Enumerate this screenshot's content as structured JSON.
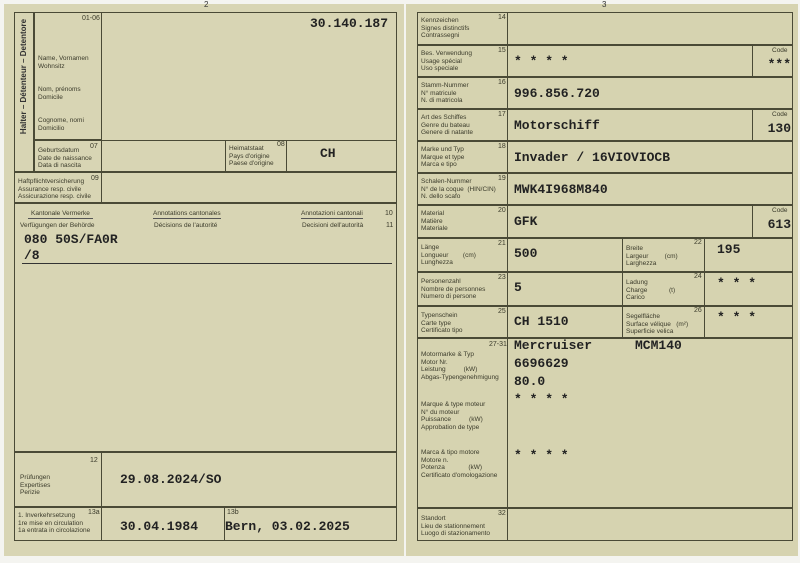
{
  "left": {
    "page_number": "2",
    "holder_vertical": "Halter – Détenteur – Detentore",
    "f0106": {
      "num": "01-06",
      "labels": [
        "Name, Vornamen",
        "Wohnsitz",
        "Nom, prénoms",
        "Domicile",
        "Cognome, nomi",
        "Domicilio"
      ],
      "value": "30.140.187"
    },
    "f07": {
      "num": "07",
      "labels": [
        "Geburtsdatum",
        "Date de naissance",
        "Data di nascita"
      ],
      "value": ""
    },
    "f08": {
      "num": "08",
      "labels": [
        "Heimatstaat",
        "Pays d'origine",
        "Paese d'origine"
      ],
      "value": "CH"
    },
    "f09": {
      "num": "09",
      "labels": [
        "Haftpflichtversicherung",
        "Assurance resp. civile",
        "Assicurazione resp. civile"
      ]
    },
    "f10": {
      "num": "10",
      "labels": [
        "Kantonale Vermerke",
        "Annotations cantonales",
        "Annotazioni cantonali"
      ]
    },
    "f11": {
      "num": "11",
      "labels": [
        "Verfügungen der Behörde",
        "Décisions de l'autorité",
        "Decisioni dell'autorità"
      ],
      "value_lines": [
        "080 50S/FA0R",
        "/8"
      ]
    },
    "f12": {
      "num": "12",
      "labels": [
        "Prüfungen",
        "Expertises",
        "Perizie"
      ],
      "value": "29.08.2024/SO"
    },
    "f13a": {
      "num": "13a",
      "labels": [
        "1. Inverkehrsetzung",
        "1re mise en circulation",
        "1a entrata in circolazione"
      ],
      "value": "30.04.1984"
    },
    "f13b": {
      "num": "13b",
      "value": "Bern, 03.02.2025"
    }
  },
  "right": {
    "page_number": "3",
    "code_label": "Code",
    "rows": [
      {
        "num": "14",
        "labels": [
          "Kennzeichen",
          "Signes distinctifs",
          "Contrassegni"
        ],
        "value": ""
      },
      {
        "num": "15",
        "labels": [
          "Bes. Verwendung",
          "Usage spécial",
          "Uso speciale"
        ],
        "value": "* * * *",
        "code": "***"
      },
      {
        "num": "16",
        "labels": [
          "Stamm-Nummer",
          "N° matricule",
          "N. di matricola"
        ],
        "value": "996.856.720"
      },
      {
        "num": "17",
        "labels": [
          "Art des Schiffes",
          "Genre du bateau",
          "Genere di natante"
        ],
        "value": "Motorschiff",
        "code": "130"
      },
      {
        "num": "18",
        "labels": [
          "Marke und Typ",
          "Marque et type",
          "Marca e tipo"
        ],
        "value": "Invader / 16VIOVIOCB"
      },
      {
        "num": "19",
        "labels": [
          "Schalen-Nummer",
          "N° de la coque  (HIN/CIN)",
          "N. dello scafo"
        ],
        "value": "MWK4I968M840"
      },
      {
        "num": "20",
        "labels": [
          "Material",
          "Matière",
          "Materiale"
        ],
        "value": "GFK",
        "code": "613"
      }
    ],
    "f21": {
      "num": "21",
      "labels": [
        "Länge",
        "Longueur        (cm)",
        "Lunghezza"
      ],
      "value": "500"
    },
    "f22": {
      "num": "22",
      "labels": [
        "Breite",
        "Largeur         (cm)",
        "Larghezza"
      ],
      "value": "195"
    },
    "f23": {
      "num": "23",
      "labels": [
        "Personenzahl",
        "Nombre de personnes",
        "Numero di persone"
      ],
      "value": "5"
    },
    "f24": {
      "num": "24",
      "labels": [
        "Ladung",
        "Charge            (t)",
        "Carico"
      ],
      "value": "* * *"
    },
    "f25": {
      "num": "25",
      "labels": [
        "Typenschein",
        "Carte type",
        "Certificato tipo"
      ],
      "value": "CH 1510"
    },
    "f26": {
      "num": "26",
      "labels": [
        "Segelfläche",
        "Surface vélique   (m²)",
        "Superficie velica"
      ],
      "value": "* * *"
    },
    "f2731": {
      "num": "27-31",
      "labels_de": [
        "Motormarke & Typ",
        "Motor Nr.",
        "Leistung          (kW)",
        "Abgas-Typengenehmigung"
      ],
      "labels_fr": [
        "Marque & type moteur",
        "N° du moteur",
        "Puissance          (kW)",
        "Approbation de type"
      ],
      "labels_it": [
        "Marca & tipo motore",
        "Motore n.",
        "Potenza             (kW)",
        "Certificato d'omologazione"
      ],
      "engine_make": "Mercruiser",
      "engine_type": "MCM140",
      "engine_no": "6696629",
      "power": "80.0",
      "stars1": "* * * *",
      "stars2": "* * * *"
    },
    "f32": {
      "num": "32",
      "labels": [
        "Standort",
        "Lieu de stationnement",
        "Luogo di stazionamento"
      ],
      "value": ""
    }
  }
}
